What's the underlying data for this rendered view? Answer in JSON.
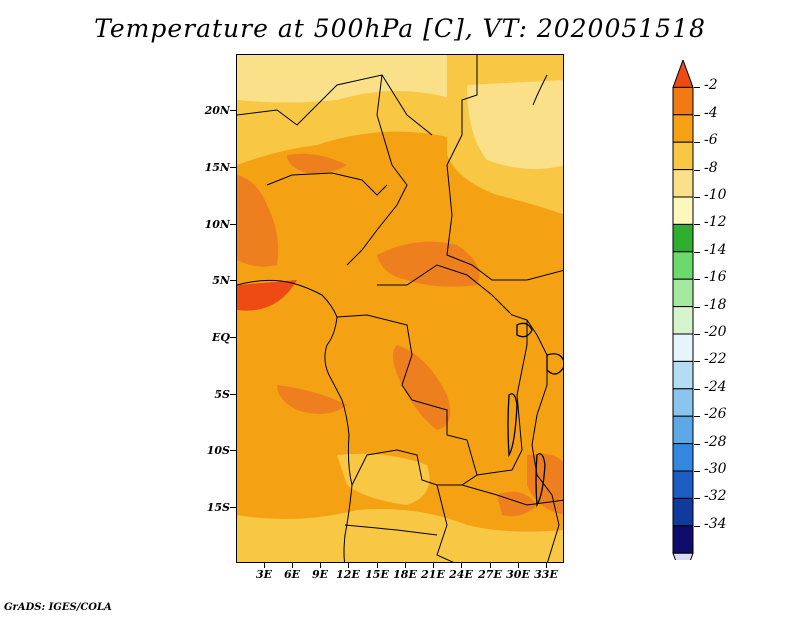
{
  "title": "Temperature at 500hPa [C], VT: 2020051518",
  "credit": "GrADS: IGES/COLA",
  "lat_labels": [
    "20N",
    "15N",
    "10N",
    "5N",
    "EQ",
    "5S",
    "10S",
    "15S"
  ],
  "lon_labels": [
    "3E",
    "6E",
    "9E",
    "12E",
    "15E",
    "18E",
    "21E",
    "24E",
    "27E",
    "30E",
    "33E"
  ],
  "colorbar": {
    "labels": [
      "-2",
      "-4",
      "-6",
      "-8",
      "-10",
      "-12",
      "-14",
      "-16",
      "-18",
      "-20",
      "-22",
      "-24",
      "-26",
      "-28",
      "-30",
      "-32",
      "-34"
    ],
    "colors": [
      "#ee4a13",
      "#f17a12",
      "#f4a214",
      "#f8c744",
      "#fbe08a",
      "#fdf7bd",
      "#2fae2f",
      "#6cd96c",
      "#a5e8a0",
      "#d4f4cc",
      "#e5f5fb",
      "#b4dcf3",
      "#8bc4ef",
      "#5ea8e8",
      "#3387de",
      "#1c5dc4",
      "#113a9d",
      "#0e0c6c",
      "#dcdcf2"
    ]
  },
  "map": {
    "colors": {
      "warm": "#ee7f1f",
      "mid": "#f4a214",
      "cool": "#f8c744",
      "coolest": "#fbe08a"
    }
  }
}
